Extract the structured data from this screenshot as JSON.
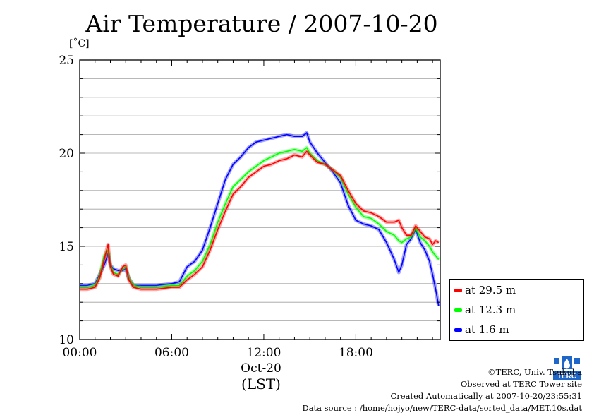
{
  "title": "Air Temperature / 2007-10-20",
  "y_unit": "[˚C]",
  "date_label": "Oct-20",
  "timezone_label": "(LST)",
  "credits": {
    "copyright": "©TERC, Univ. Tsukuba",
    "observed": "Observed at TERC Tower site",
    "created": "Created Automatically at 2007-10-20/23:55:31",
    "source": "Data source : /home/hojyo/new/TERC-data/sorted_data/MET.10s.dat"
  },
  "logo_text": "TERC",
  "chart_data": {
    "type": "line",
    "title": "Air Temperature / 2007-10-20",
    "ylabel": "[˚C]",
    "xlabel": "(LST)",
    "xlim": [
      0,
      23.5
    ],
    "ylim": [
      10,
      25
    ],
    "xticks": [
      0,
      6,
      12,
      18
    ],
    "xtick_labels": [
      "00:00",
      "06:00",
      "12:00",
      "18:00"
    ],
    "yticks": [
      10,
      15,
      20,
      25
    ],
    "ytick_labels": [
      "10",
      "15",
      "20",
      "25"
    ],
    "grid": true,
    "legend_position": "right-outside-bottom",
    "x": [
      0,
      0.5,
      1,
      1.3,
      1.6,
      1.85,
      2.0,
      2.2,
      2.5,
      2.8,
      3.0,
      3.2,
      3.5,
      4,
      5,
      6,
      6.5,
      7,
      7.5,
      8,
      8.5,
      9,
      9.5,
      10,
      10.5,
      11,
      11.5,
      12,
      12.5,
      13,
      13.5,
      14,
      14.5,
      14.8,
      15,
      15.5,
      16,
      16.5,
      17,
      17.5,
      18,
      18.5,
      19,
      19.5,
      20,
      20.5,
      20.8,
      21,
      21.3,
      21.6,
      21.9,
      22.2,
      22.5,
      22.8,
      23,
      23.2,
      23.4
    ],
    "series": [
      {
        "name": "at 29.5 m",
        "color": "#ff0000",
        "values": [
          12.7,
          12.7,
          12.8,
          13.3,
          14.3,
          15.1,
          13.9,
          13.5,
          13.4,
          13.9,
          14.0,
          13.2,
          12.8,
          12.7,
          12.7,
          12.8,
          12.8,
          13.2,
          13.5,
          13.9,
          14.8,
          15.9,
          16.9,
          17.8,
          18.2,
          18.7,
          19.0,
          19.3,
          19.4,
          19.6,
          19.7,
          19.9,
          19.8,
          20.1,
          19.9,
          19.5,
          19.4,
          19.1,
          18.8,
          18.0,
          17.3,
          16.9,
          16.8,
          16.6,
          16.3,
          16.3,
          16.4,
          16.0,
          15.6,
          15.6,
          16.1,
          15.8,
          15.5,
          15.4,
          15.1,
          15.3,
          15.2
        ]
      },
      {
        "name": "at 12.3 m",
        "color": "#00ff00",
        "values": [
          12.8,
          12.8,
          12.9,
          13.4,
          14.5,
          14.8,
          14.0,
          13.6,
          13.5,
          13.8,
          13.9,
          13.3,
          12.9,
          12.8,
          12.8,
          12.9,
          12.9,
          13.4,
          13.7,
          14.2,
          15.1,
          16.3,
          17.3,
          18.2,
          18.6,
          19.0,
          19.3,
          19.6,
          19.8,
          20.0,
          20.1,
          20.2,
          20.1,
          20.3,
          20.0,
          19.6,
          19.4,
          19.1,
          18.7,
          17.8,
          17.1,
          16.6,
          16.5,
          16.2,
          15.8,
          15.6,
          15.3,
          15.2,
          15.4,
          15.5,
          16.0,
          15.5,
          15.3,
          15.0,
          14.7,
          14.5,
          14.3
        ]
      },
      {
        "name": "at 1.6 m",
        "color": "#0000ff",
        "values": [
          12.9,
          12.9,
          13.0,
          13.5,
          14.0,
          14.6,
          14.0,
          13.8,
          13.7,
          13.7,
          13.8,
          13.3,
          12.9,
          12.9,
          12.9,
          13.0,
          13.1,
          13.9,
          14.2,
          14.8,
          16.0,
          17.3,
          18.6,
          19.4,
          19.8,
          20.3,
          20.6,
          20.7,
          20.8,
          20.9,
          21.0,
          20.9,
          20.9,
          21.1,
          20.6,
          20.0,
          19.5,
          19.0,
          18.4,
          17.2,
          16.4,
          16.2,
          16.1,
          15.9,
          15.2,
          14.3,
          13.6,
          14.0,
          15.1,
          15.4,
          15.9,
          15.2,
          14.8,
          14.2,
          13.5,
          12.7,
          11.8
        ]
      }
    ]
  }
}
